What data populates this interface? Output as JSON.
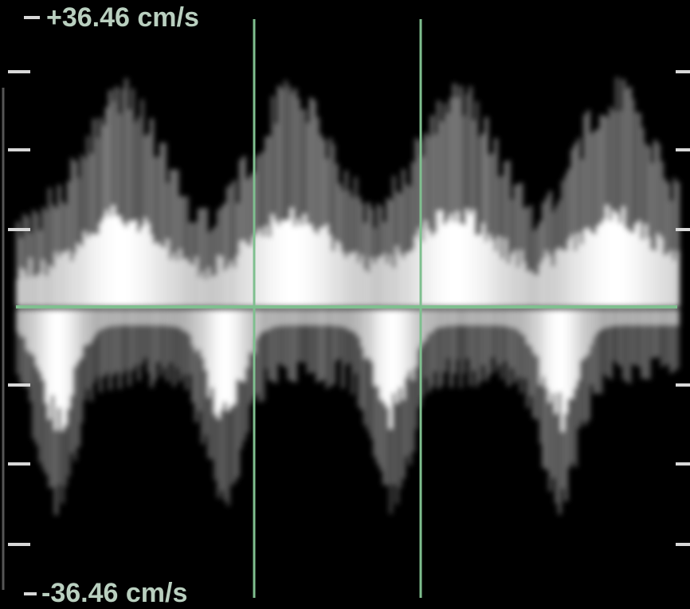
{
  "scale": {
    "max_label": "+36.46 cm/s",
    "min_label": "-36.46 cm/s"
  }
}
